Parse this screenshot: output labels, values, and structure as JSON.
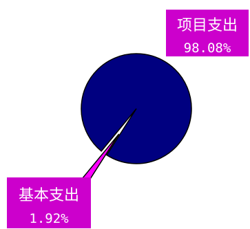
{
  "chart_data": {
    "type": "pie",
    "slices": [
      {
        "label": "项目支出",
        "value": 98.08,
        "value_label": "98.08%",
        "color": "#000080"
      },
      {
        "label": "基本支出",
        "value": 1.92,
        "value_label": "1.92%",
        "color": "#ff00ff"
      }
    ],
    "label_box_color": "#cc00cc",
    "outline_color": "#000000"
  }
}
